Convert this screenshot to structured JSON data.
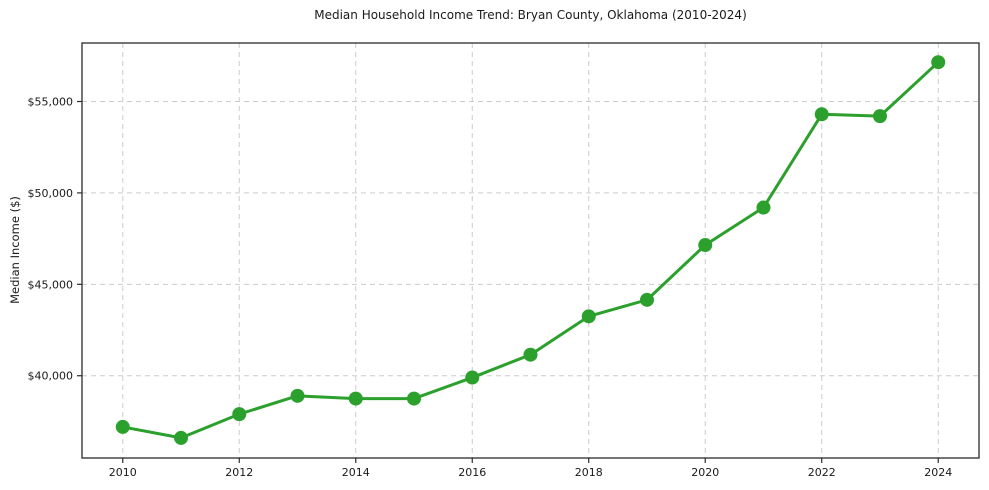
{
  "title": "Median Household Income Trend: Bryan County, Oklahoma (2010-2024)",
  "chart_data": {
    "type": "line",
    "title": "Median Household Income Trend: Bryan County, Oklahoma (2010-2024)",
    "xlabel": "",
    "ylabel": "Median Income ($)",
    "x": [
      2010,
      2011,
      2012,
      2013,
      2014,
      2015,
      2016,
      2017,
      2018,
      2019,
      2020,
      2021,
      2022,
      2023,
      2024
    ],
    "series": [
      {
        "name": "Median Household Income",
        "values": [
          37200,
          36600,
          37900,
          38900,
          38750,
          38750,
          39900,
          41150,
          43250,
          44150,
          47150,
          49200,
          54300,
          54200,
          57150
        ]
      }
    ],
    "xlim": [
      2009.3,
      2024.7
    ],
    "ylim": [
      35500,
      58200
    ],
    "x_ticks": [
      2010,
      2012,
      2014,
      2016,
      2018,
      2020,
      2022,
      2024
    ],
    "x_tick_labels": [
      "2010",
      "2012",
      "2014",
      "2016",
      "2018",
      "2020",
      "2022",
      "2024"
    ],
    "y_ticks": [
      40000,
      45000,
      50000,
      55000
    ],
    "y_tick_labels": [
      "$40,000",
      "$45,000",
      "$50,000",
      "$55,000"
    ],
    "grid": true,
    "legend": "none",
    "line_color": "#2ca02c",
    "marker_color": "#2ca02c",
    "marker_radius": 7,
    "line_width": 3,
    "grid_color": "#cccccc",
    "spine_color": "#2b2b2b",
    "background_color": "#ffffff"
  }
}
